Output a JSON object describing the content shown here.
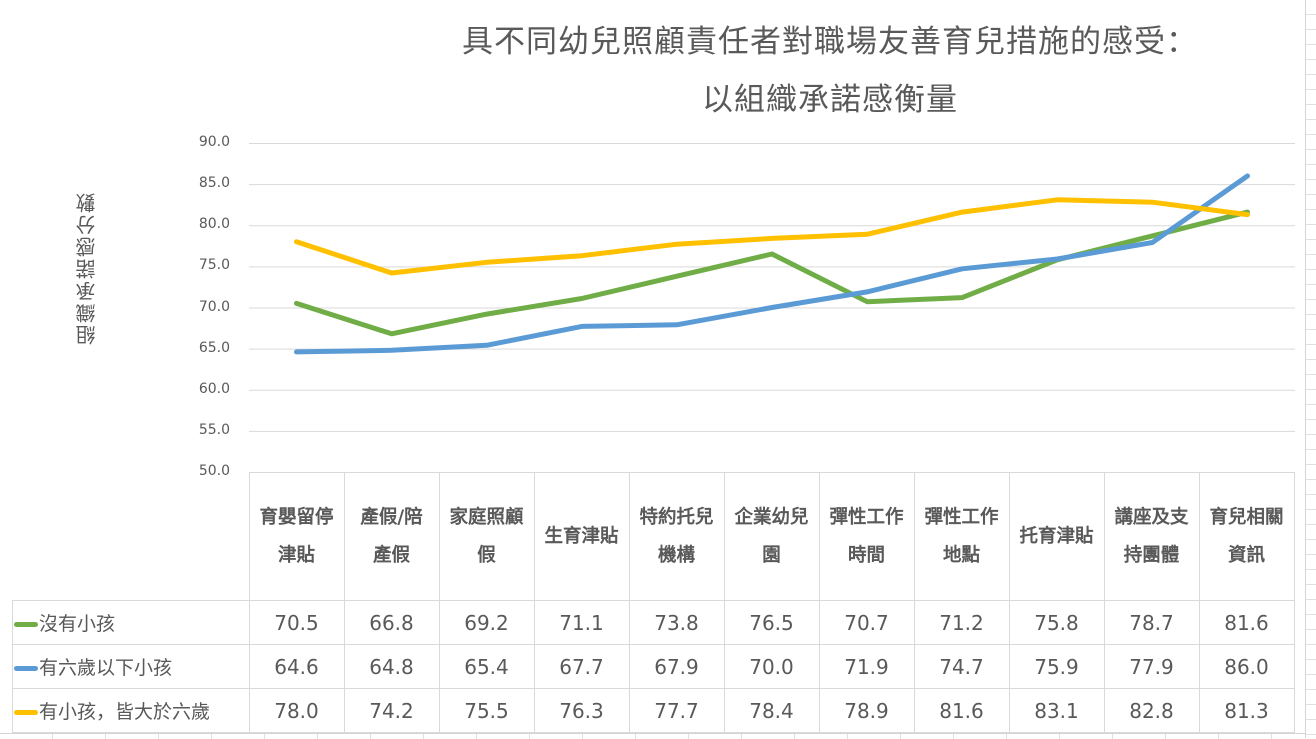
{
  "chart_data": {
    "type": "line",
    "title": "具不同幼兒照顧責任者對職場友善育兒措施的感受：以組織承諾感衡量",
    "title_lines": [
      "具不同幼兒照顧責任者對職場友善育兒措施的感受：",
      "以組織承諾感衡量"
    ],
    "xlabel": "",
    "ylabel": "組織承諾感分數",
    "ylim": [
      50,
      90
    ],
    "yticks": [
      "90.0",
      "85.0",
      "80.0",
      "75.0",
      "70.0",
      "65.0",
      "60.0",
      "55.0",
      "50.0"
    ],
    "grid": true,
    "legend_position": "data-table",
    "categories": [
      "育嬰留停津貼",
      "產假/陪產假",
      "家庭照顧假",
      "生育津貼",
      "特約托兒機構",
      "企業幼兒園",
      "彈性工作時間",
      "彈性工作地點",
      "托育津貼",
      "講座及支持團體",
      "育兒相關資訊"
    ],
    "category_labels": [
      "育嬰留停津貼",
      "產假/陪產假",
      "家庭照顧假",
      "生育津貼",
      "特約托兒機構",
      "企業幼兒園",
      "彈性工作時間",
      "彈性工作地點",
      "托育津貼",
      "講座及支持團體",
      "育兒相關資訊"
    ],
    "series": [
      {
        "name": "沒有小孩",
        "color": "#70ad47",
        "values": [
          70.5,
          66.8,
          69.2,
          71.1,
          73.8,
          76.5,
          70.7,
          71.2,
          75.8,
          78.7,
          81.6
        ],
        "labels": [
          "70.5",
          "66.8",
          "69.2",
          "71.1",
          "73.8",
          "76.5",
          "70.7",
          "71.2",
          "75.8",
          "78.7",
          "81.6"
        ]
      },
      {
        "name": "有六歲以下小孩",
        "color": "#5b9bd5",
        "values": [
          64.6,
          64.8,
          65.4,
          67.7,
          67.9,
          70.0,
          71.9,
          74.7,
          75.9,
          77.9,
          86.0
        ],
        "labels": [
          "64.6",
          "64.8",
          "65.4",
          "67.7",
          "67.9",
          "70.0",
          "71.9",
          "74.7",
          "75.9",
          "77.9",
          "86.0"
        ]
      },
      {
        "name": "有小孩，皆大於六歲",
        "color": "#ffc000",
        "values": [
          78.0,
          74.2,
          75.5,
          76.3,
          77.7,
          78.4,
          78.9,
          81.6,
          83.1,
          82.8,
          81.3
        ],
        "labels": [
          "78.0",
          "74.2",
          "75.5",
          "76.3",
          "77.7",
          "78.4",
          "78.9",
          "81.6",
          "83.1",
          "82.8",
          "81.3"
        ]
      }
    ]
  },
  "colors": {
    "text": "#595959",
    "grid": "#d9d9d9",
    "green": "#70ad47",
    "blue": "#5b9bd5",
    "yellow": "#ffc000"
  }
}
